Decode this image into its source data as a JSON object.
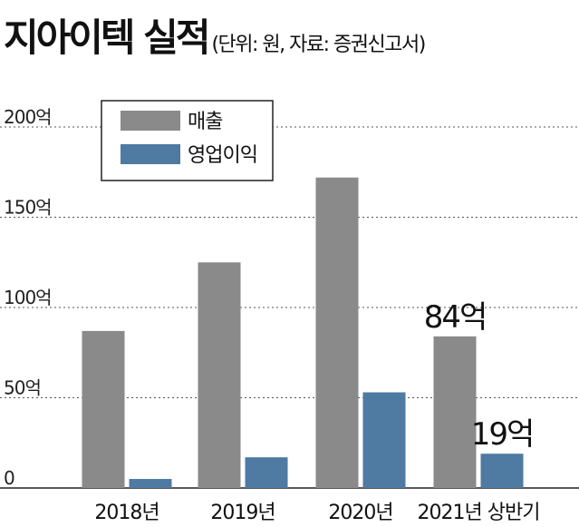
{
  "title": "지아이텍 실적",
  "subtitle": "(단위: 원, 자료: 증권신고서)",
  "colors": {
    "revenue": "#8a8a8a",
    "operating_profit": "#4f7aa2",
    "grid": "#555555"
  },
  "chart_data": {
    "type": "bar",
    "title": "지아이텍 실적",
    "categories": [
      "2018년",
      "2019년",
      "2020년",
      "2021년 상반기"
    ],
    "series": [
      {
        "name": "매출",
        "values": [
          87,
          125,
          172,
          84
        ]
      },
      {
        "name": "영업이익",
        "values": [
          5,
          17,
          53,
          19
        ]
      }
    ],
    "ylim": [
      0,
      200
    ],
    "yticks": [
      0,
      50,
      100,
      150,
      200
    ],
    "ytick_labels": [
      "0",
      "50억",
      "100억",
      "150억",
      "200억"
    ],
    "grid": true,
    "legend_position": "top-left",
    "annotations": [
      {
        "category": "2021년 상반기",
        "series": "매출",
        "text": "84억"
      },
      {
        "category": "2021년 상반기",
        "series": "영업이익",
        "text": "19억"
      }
    ]
  }
}
